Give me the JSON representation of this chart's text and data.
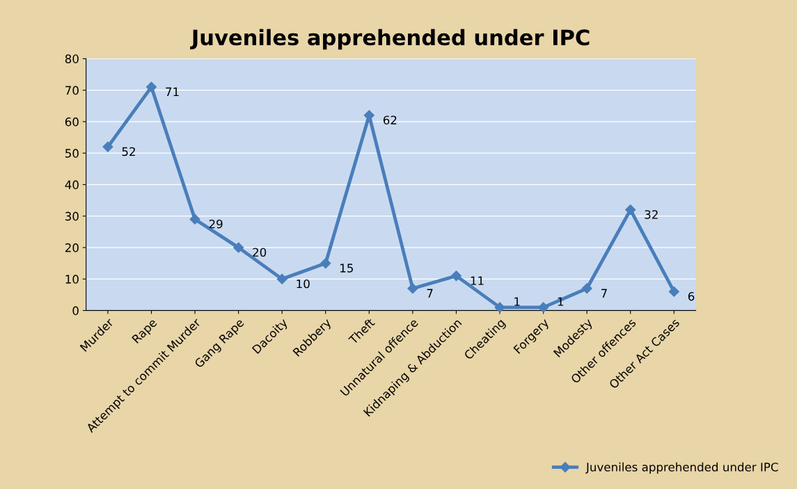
{
  "chart_data": {
    "type": "line",
    "title": "Juveniles apprehended under IPC",
    "categories": [
      "Murder",
      "Rape",
      "Attempt to commit Murder",
      "Gang Rape",
      "Dacoity",
      "Robbery",
      "Theft",
      "Unnatural offence",
      "Kidnaping & Abduction",
      "Cheating",
      "Forgery",
      "Modesty",
      "Other offences",
      "Other Act Cases"
    ],
    "series": [
      {
        "name": "Juveniles apprehended under IPC",
        "color": "#4a7ebb",
        "values": [
          52,
          71,
          29,
          20,
          10,
          15,
          62,
          7,
          11,
          1,
          1,
          7,
          32,
          6
        ]
      }
    ],
    "ylim": [
      0,
      80
    ],
    "yticks": [
      0,
      10,
      20,
      30,
      40,
      50,
      60,
      70,
      80
    ],
    "grid": "y",
    "legend": "bottom right",
    "marker": "diamond",
    "line_style": "solid",
    "data_labels": true
  }
}
